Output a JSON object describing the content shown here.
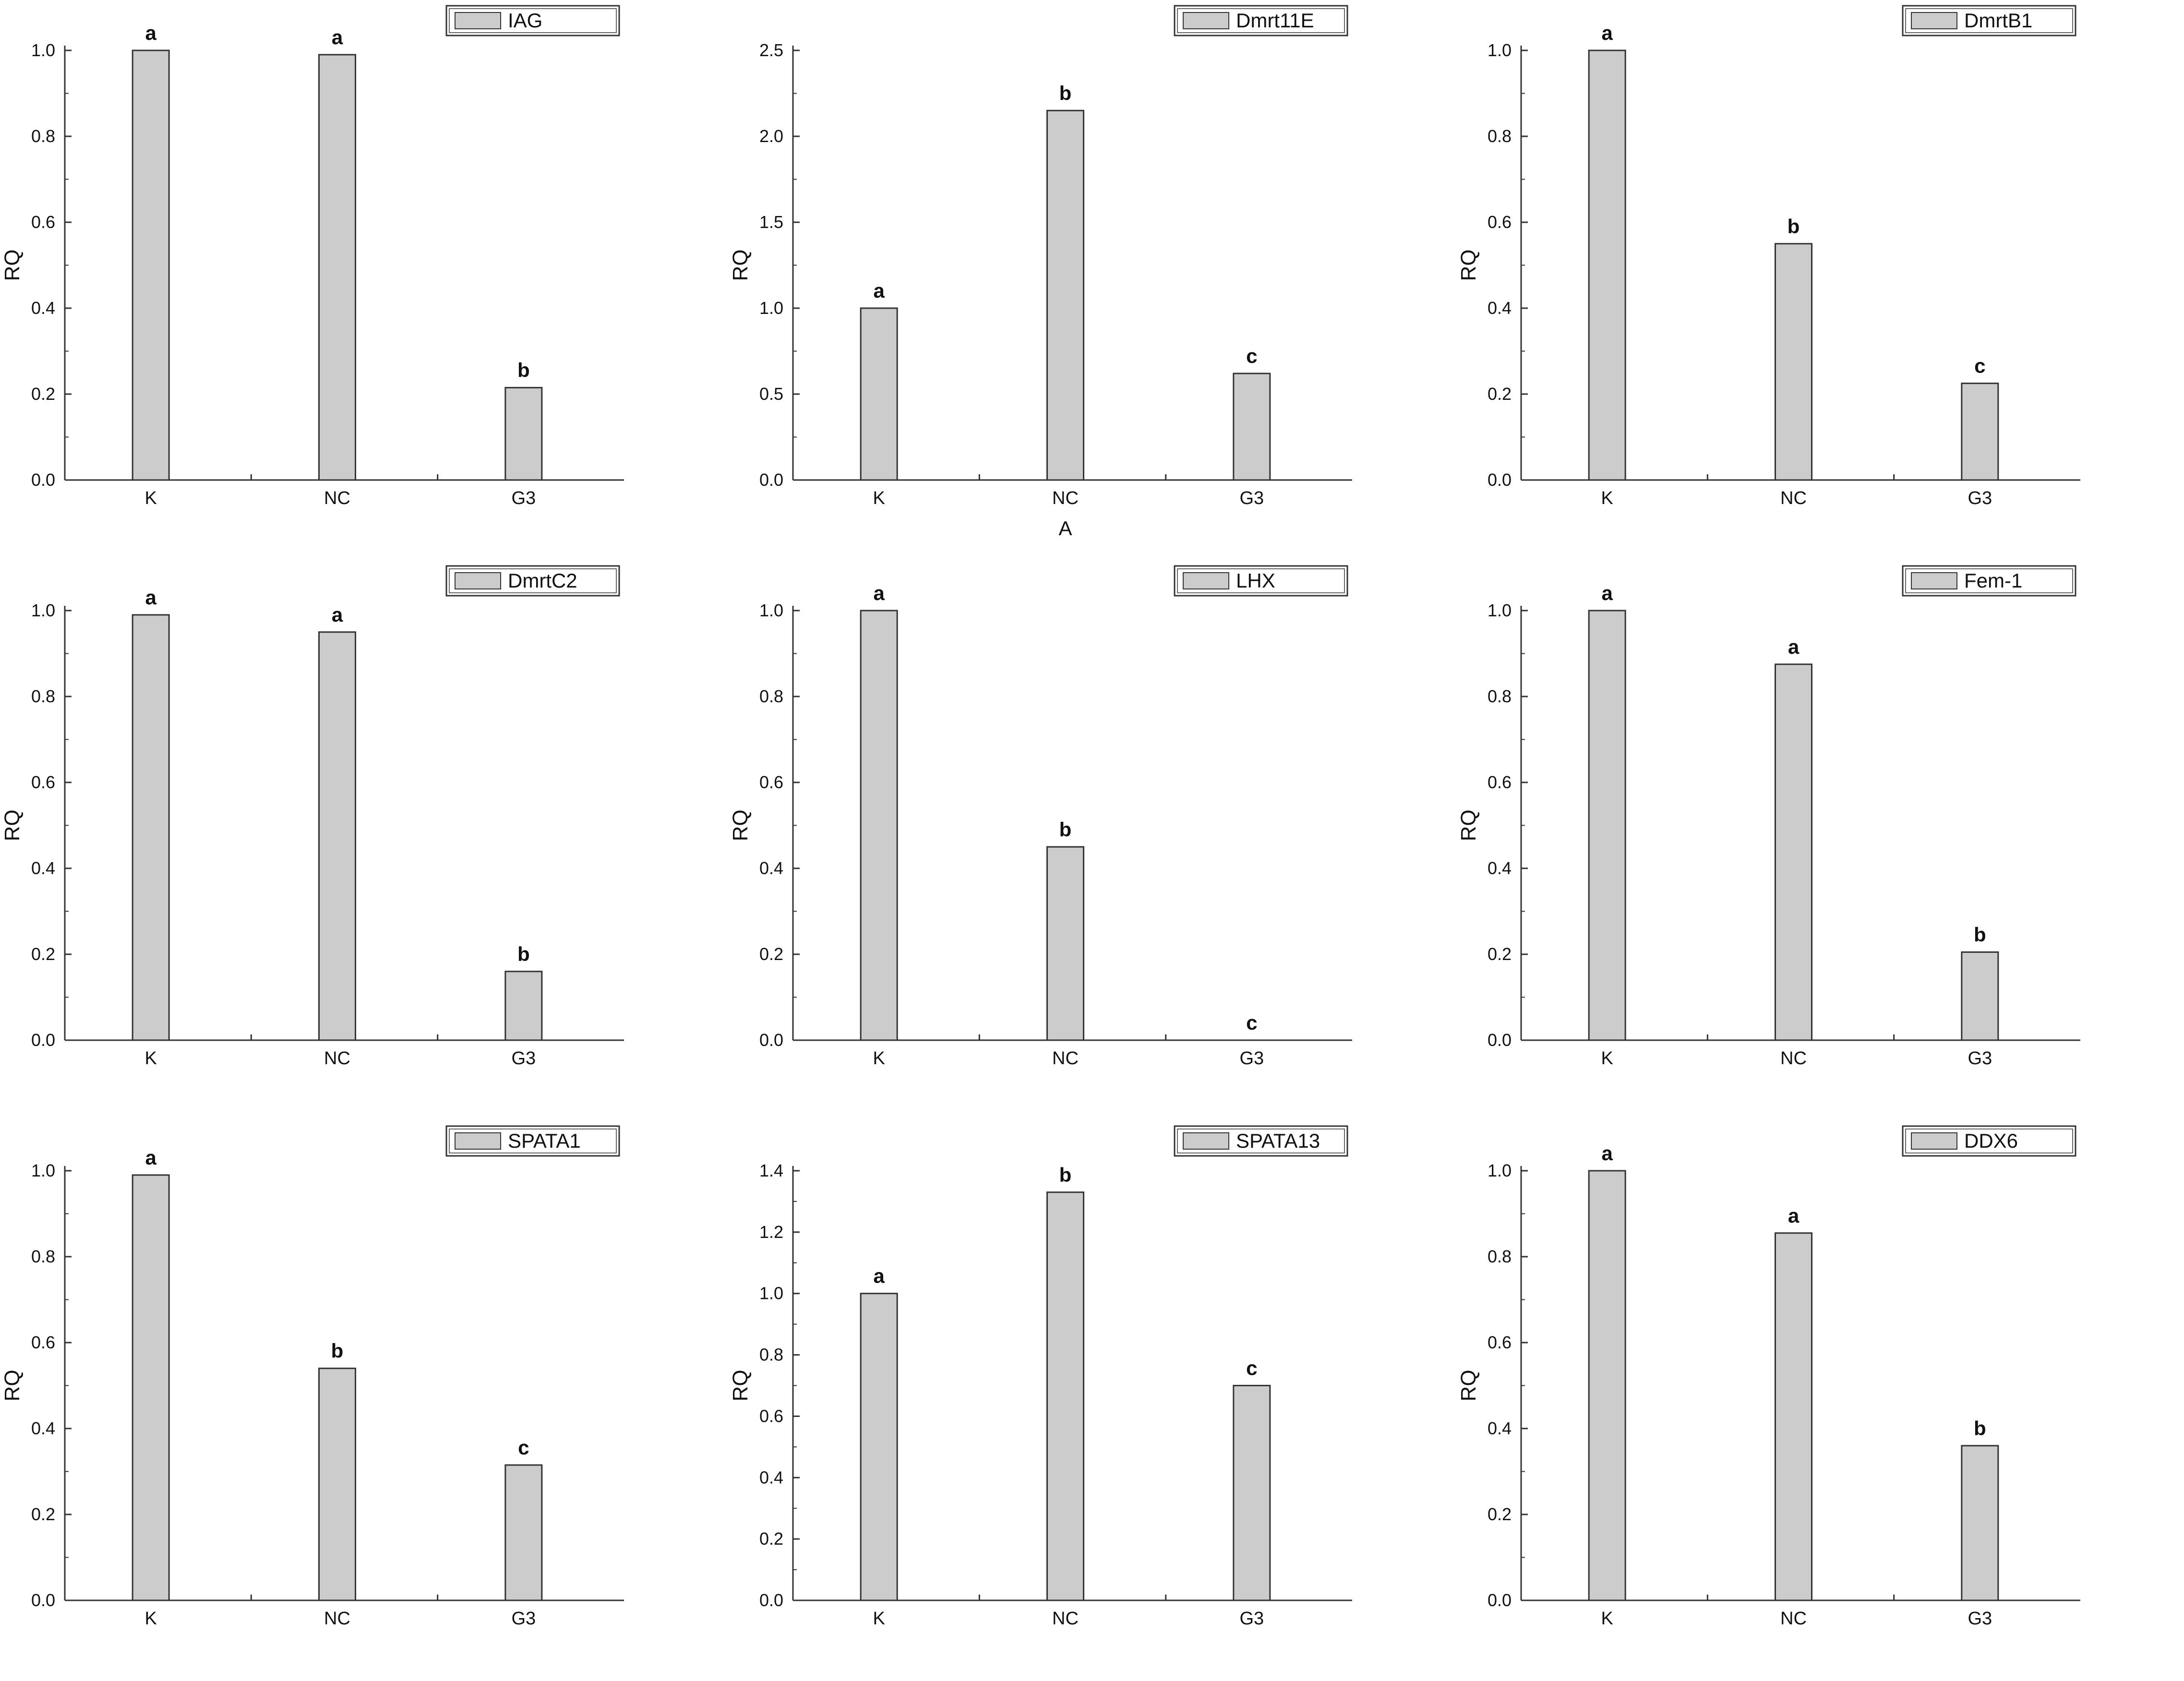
{
  "figure": {
    "charts": [
      {
        "gene": "IAG",
        "categories": [
          "K",
          "NC",
          "G3"
        ],
        "values": [
          1.0,
          0.99,
          0.215
        ],
        "significance": [
          "a",
          "a",
          "b"
        ],
        "ylabel": "RQ",
        "ylim": [
          0,
          1.0
        ],
        "yticks": [
          0.0,
          0.2,
          0.4,
          0.6,
          0.8,
          1.0
        ],
        "tick_format": "0.0",
        "xlabel": ""
      },
      {
        "gene": "Dmrt11E",
        "categories": [
          "K",
          "NC",
          "G3"
        ],
        "values": [
          1.0,
          2.15,
          0.62
        ],
        "significance": [
          "a",
          "b",
          "c"
        ],
        "ylabel": "RQ",
        "ylim": [
          0,
          2.5
        ],
        "yticks": [
          0.0,
          0.5,
          1.0,
          1.5,
          2.0,
          2.5
        ],
        "tick_format": "0.0",
        "xlabel": "A"
      },
      {
        "gene": "DmrtB1",
        "categories": [
          "K",
          "NC",
          "G3"
        ],
        "values": [
          1.0,
          0.55,
          0.225
        ],
        "significance": [
          "a",
          "b",
          "c"
        ],
        "ylabel": "RQ",
        "ylim": [
          0,
          1.0
        ],
        "yticks": [
          0.0,
          0.2,
          0.4,
          0.6,
          0.8,
          1.0
        ],
        "tick_format": "0.0",
        "xlabel": ""
      },
      {
        "gene": "DmrtC2",
        "categories": [
          "K",
          "NC",
          "G3"
        ],
        "values": [
          0.99,
          0.95,
          0.16
        ],
        "significance": [
          "a",
          "a",
          "b"
        ],
        "ylabel": "RQ",
        "ylim": [
          0,
          1.0
        ],
        "yticks": [
          0.0,
          0.2,
          0.4,
          0.6,
          0.8,
          1.0
        ],
        "tick_format": "0.0",
        "xlabel": ""
      },
      {
        "gene": "LHX",
        "categories": [
          "K",
          "NC",
          "G3"
        ],
        "values": [
          1.0,
          0.45,
          0.0
        ],
        "significance": [
          "a",
          "b",
          "c"
        ],
        "ylabel": "RQ",
        "ylim": [
          0,
          1.0
        ],
        "yticks": [
          0.0,
          0.2,
          0.4,
          0.6,
          0.8,
          1.0
        ],
        "tick_format": "0.0",
        "xlabel": ""
      },
      {
        "gene": "Fem-1",
        "categories": [
          "K",
          "NC",
          "G3"
        ],
        "values": [
          1.0,
          0.875,
          0.205
        ],
        "significance": [
          "a",
          "a",
          "b"
        ],
        "ylabel": "RQ",
        "ylim": [
          0,
          1.0
        ],
        "yticks": [
          0.0,
          0.2,
          0.4,
          0.6,
          0.8,
          1.0
        ],
        "tick_format": "0.0",
        "xlabel": ""
      },
      {
        "gene": "SPATA1",
        "categories": [
          "K",
          "NC",
          "G3"
        ],
        "values": [
          0.99,
          0.54,
          0.315
        ],
        "significance": [
          "a",
          "b",
          "c"
        ],
        "ylabel": "RQ",
        "ylim": [
          0,
          1.0
        ],
        "yticks": [
          0.0,
          0.2,
          0.4,
          0.6,
          0.8,
          1.0
        ],
        "tick_format": "0.0",
        "xlabel": ""
      },
      {
        "gene": "SPATA13",
        "categories": [
          "K",
          "NC",
          "G3"
        ],
        "values": [
          1.0,
          1.33,
          0.7
        ],
        "significance": [
          "a",
          "b",
          "c"
        ],
        "ylabel": "RQ",
        "ylim": [
          0,
          1.4
        ],
        "yticks": [
          0.0,
          0.2,
          0.4,
          0.6,
          0.8,
          1.0,
          1.2,
          1.4
        ],
        "tick_format": "0.0",
        "xlabel": ""
      },
      {
        "gene": "DDX6",
        "categories": [
          "K",
          "NC",
          "G3"
        ],
        "values": [
          1.0,
          0.855,
          0.36
        ],
        "significance": [
          "a",
          "a",
          "b"
        ],
        "ylabel": "RQ",
        "ylim": [
          0,
          1.0
        ],
        "yticks": [
          0.0,
          0.2,
          0.4,
          0.6,
          0.8,
          1.0
        ],
        "tick_format": "0.0",
        "xlabel": ""
      }
    ]
  },
  "chart_data": [
    {
      "type": "bar",
      "categories": [
        "K",
        "NC",
        "G3"
      ],
      "series": [
        {
          "name": "IAG",
          "values": [
            1.0,
            0.99,
            0.215
          ]
        }
      ],
      "ylabel": "RQ",
      "ylim": [
        0,
        1.0
      ],
      "legend": "top-right",
      "grid": false
    },
    {
      "type": "bar",
      "categories": [
        "K",
        "NC",
        "G3"
      ],
      "series": [
        {
          "name": "Dmrt11E",
          "values": [
            1.0,
            2.15,
            0.62
          ]
        }
      ],
      "xlabel": "A",
      "ylabel": "RQ",
      "ylim": [
        0,
        2.5
      ],
      "legend": "top-right",
      "grid": false
    },
    {
      "type": "bar",
      "categories": [
        "K",
        "NC",
        "G3"
      ],
      "series": [
        {
          "name": "DmrtB1",
          "values": [
            1.0,
            0.55,
            0.225
          ]
        }
      ],
      "ylabel": "RQ",
      "ylim": [
        0,
        1.0
      ],
      "legend": "top-right",
      "grid": false
    },
    {
      "type": "bar",
      "categories": [
        "K",
        "NC",
        "G3"
      ],
      "series": [
        {
          "name": "DmrtC2",
          "values": [
            0.99,
            0.95,
            0.16
          ]
        }
      ],
      "ylabel": "RQ",
      "ylim": [
        0,
        1.0
      ],
      "legend": "top-right",
      "grid": false
    },
    {
      "type": "bar",
      "categories": [
        "K",
        "NC",
        "G3"
      ],
      "series": [
        {
          "name": "LHX",
          "values": [
            1.0,
            0.45,
            0.0
          ]
        }
      ],
      "ylabel": "RQ",
      "ylim": [
        0,
        1.0
      ],
      "legend": "top-right",
      "grid": false
    },
    {
      "type": "bar",
      "categories": [
        "K",
        "NC",
        "G3"
      ],
      "series": [
        {
          "name": "Fem-1",
          "values": [
            1.0,
            0.875,
            0.205
          ]
        }
      ],
      "ylabel": "RQ",
      "ylim": [
        0,
        1.0
      ],
      "legend": "top-right",
      "grid": false
    },
    {
      "type": "bar",
      "categories": [
        "K",
        "NC",
        "G3"
      ],
      "series": [
        {
          "name": "SPATA1",
          "values": [
            0.99,
            0.54,
            0.315
          ]
        }
      ],
      "ylabel": "RQ",
      "ylim": [
        0,
        1.0
      ],
      "legend": "top-right",
      "grid": false
    },
    {
      "type": "bar",
      "categories": [
        "K",
        "NC",
        "G3"
      ],
      "series": [
        {
          "name": "SPATA13",
          "values": [
            1.0,
            1.33,
            0.7
          ]
        }
      ],
      "ylabel": "RQ",
      "ylim": [
        0,
        1.4
      ],
      "legend": "top-right",
      "grid": false
    },
    {
      "type": "bar",
      "categories": [
        "K",
        "NC",
        "G3"
      ],
      "series": [
        {
          "name": "DDX6",
          "values": [
            1.0,
            0.855,
            0.36
          ]
        }
      ],
      "ylabel": "RQ",
      "ylim": [
        0,
        1.0
      ],
      "legend": "top-right",
      "grid": false
    }
  ],
  "style": {
    "bar_fill": "#cccccc",
    "bar_stroke": "#333333",
    "axis": "#333333",
    "text": "#111111"
  }
}
